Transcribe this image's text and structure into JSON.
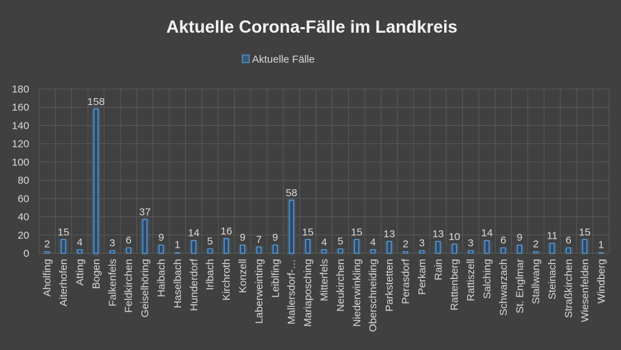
{
  "chart_data": {
    "type": "bar",
    "title": "Aktuelle Corona-Fälle im Landkreis",
    "legend": {
      "position": "top",
      "entries": [
        "Aktuelle Fälle"
      ]
    },
    "ylim": [
      0,
      180
    ],
    "yticks": [
      0,
      20,
      40,
      60,
      80,
      100,
      120,
      140,
      160,
      180
    ],
    "grid": true,
    "categories": [
      "Aholfing",
      "Aiterhofen",
      "Atting",
      "Bogen",
      "Falkenfels",
      "Feldkirchen",
      "Geiselhöring",
      "Haibach",
      "Haselbach",
      "Hunderdorf",
      "Irlbach",
      "Kirchroth",
      "Konzell",
      "Laberweinting",
      "Leiblfing",
      "Mallersdorf-…",
      "Mariaposching",
      "Mitterfels",
      "Neukirchen",
      "Niederwinkling",
      "Oberschneiding",
      "Parkstetten",
      "Perasdorf",
      "Perkam",
      "Rain",
      "Rattenberg",
      "Rattiszell",
      "Salching",
      "Schwarzach",
      "St. Englmar",
      "Stallwang",
      "Steinach",
      "Straßkirchen",
      "Wiesenfelden",
      "Windberg"
    ],
    "series": [
      {
        "name": "Aktuelle Fälle",
        "color": "#5b9bd5",
        "values": [
          2,
          15,
          4,
          158,
          3,
          6,
          37,
          9,
          1,
          14,
          5,
          16,
          9,
          7,
          9,
          58,
          15,
          4,
          5,
          15,
          4,
          13,
          2,
          3,
          13,
          10,
          3,
          14,
          6,
          9,
          2,
          11,
          6,
          15,
          1
        ]
      }
    ]
  }
}
